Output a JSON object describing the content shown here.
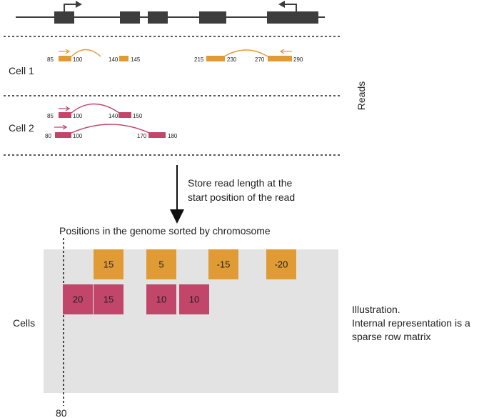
{
  "cell_labels": {
    "cell1": "Cell 1",
    "cell2": "Cell 2"
  },
  "reads_label": "Reads",
  "arrow_caption": {
    "line1": "Store read length at the",
    "line2": "start position of the read"
  },
  "matrix_title": "Positions in the genome sorted by chromosome",
  "cells_label": "Cells",
  "axis_value": "80",
  "note": {
    "line1": "Illustration.",
    "line2": "Internal representation is a",
    "line3": "sparse row matrix"
  },
  "colors": {
    "orange": "#E09B35",
    "crimson": "#C2456A",
    "exon": "#3D3D3D",
    "matrix_bg": "#E3E3E3"
  },
  "cell1_reads": {
    "read_a": {
      "start": "85",
      "end": "145",
      "junction_left": "100",
      "junction_right": "140"
    },
    "read_b": {
      "start": "215",
      "end": "290",
      "junction_left": "230",
      "junction_right": "270"
    }
  },
  "cell2_reads": {
    "read_a": {
      "start": "85",
      "end": "150",
      "junction_left": "100",
      "junction_right": "140"
    },
    "read_b": {
      "start": "80",
      "end": "180",
      "junction_left": "100",
      "junction_right": "170"
    }
  },
  "matrix": {
    "row1": {
      "c1": "15",
      "c2": "5",
      "c3": "-15",
      "c4": "-20"
    },
    "row2": {
      "c1": "20",
      "c2": "15",
      "c3": "10",
      "c4": "10"
    }
  }
}
